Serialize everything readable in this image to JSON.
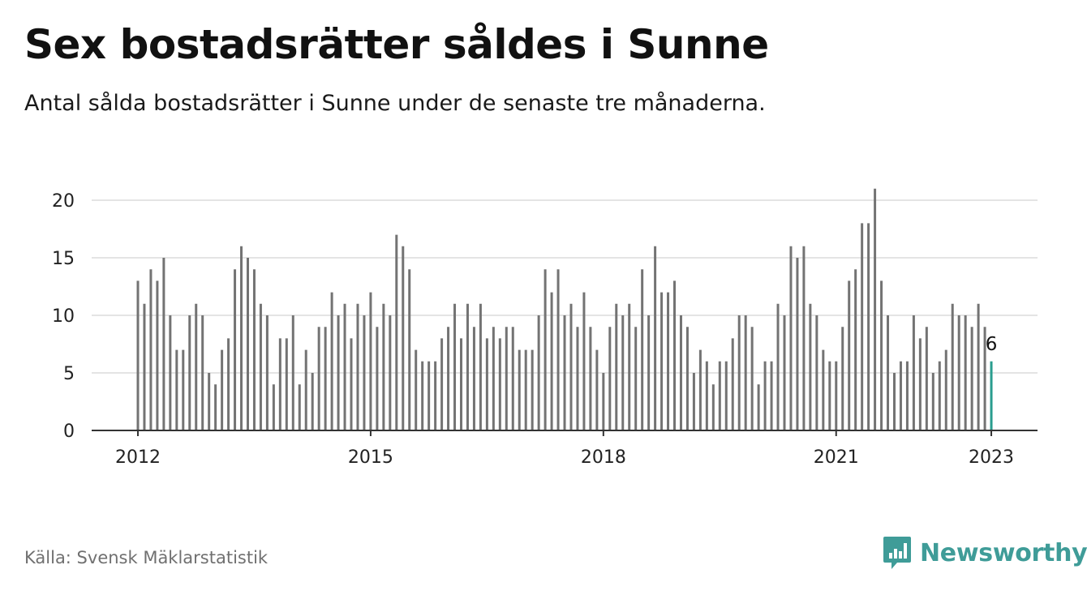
{
  "title": "Sex bostadsrätter såldes i Sunne",
  "subtitle": "Antal sålda bostadsrätter i Sunne under de senaste tre månaderna.",
  "source": "Källa: Svensk Mäklarstatistik",
  "brand": "Newsworthy",
  "colors": {
    "bar": "#737373",
    "highlight": "#2a9d8f",
    "grid": "#dcdcdc",
    "axis": "#333333",
    "brand": "#3f9c98"
  },
  "chart_data": {
    "type": "bar",
    "x_ticks": [
      "2012",
      "2015",
      "2018",
      "2021",
      "2023"
    ],
    "y_ticks": [
      0,
      5,
      10,
      15,
      20
    ],
    "ylim": [
      0,
      21
    ],
    "x_start": "2012-01",
    "highlight_label": "6",
    "values": [
      13,
      11,
      14,
      13,
      15,
      10,
      7,
      7,
      10,
      11,
      10,
      5,
      4,
      7,
      8,
      14,
      16,
      15,
      14,
      11,
      10,
      4,
      8,
      8,
      10,
      4,
      7,
      5,
      9,
      9,
      12,
      10,
      11,
      8,
      11,
      10,
      12,
      9,
      11,
      10,
      17,
      16,
      14,
      7,
      6,
      6,
      6,
      8,
      9,
      11,
      8,
      11,
      9,
      11,
      8,
      9,
      8,
      9,
      9,
      7,
      7,
      7,
      10,
      14,
      12,
      14,
      10,
      11,
      9,
      12,
      9,
      7,
      5,
      9,
      11,
      10,
      11,
      9,
      14,
      10,
      16,
      12,
      12,
      13,
      10,
      9,
      5,
      7,
      6,
      4,
      6,
      6,
      8,
      10,
      10,
      9,
      4,
      6,
      6,
      11,
      10,
      16,
      15,
      16,
      11,
      10,
      7,
      6,
      6,
      9,
      13,
      14,
      18,
      18,
      21,
      13,
      10,
      5,
      6,
      6,
      10,
      8,
      9,
      5,
      6,
      7,
      11,
      10,
      10,
      9,
      11,
      9,
      6
    ]
  }
}
